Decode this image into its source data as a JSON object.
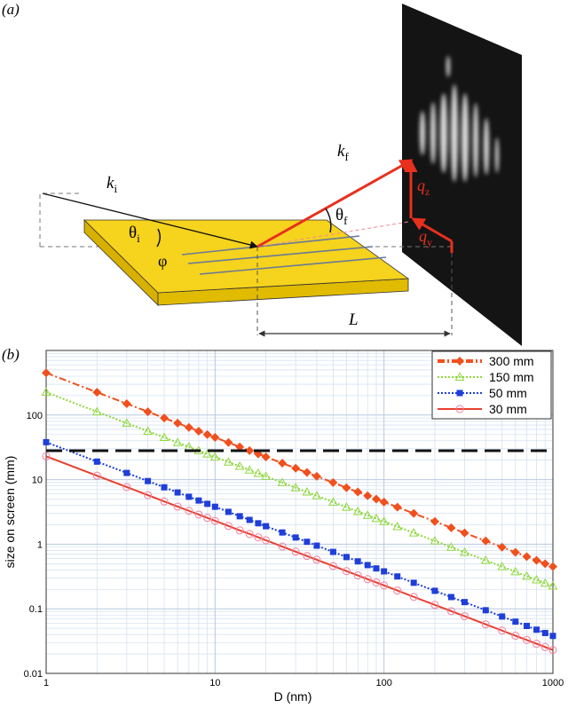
{
  "diagram": {
    "panel_label": "(a)",
    "k_i": {
      "symbol": "k",
      "sub": "i"
    },
    "k_f": {
      "symbol": "k",
      "sub": "f"
    },
    "theta_i": {
      "symbol": "θ",
      "sub": "i"
    },
    "theta_f": {
      "symbol": "θ",
      "sub": "f"
    },
    "phi": "φ",
    "q_z": {
      "symbol": "q",
      "sub": "z"
    },
    "q_y": {
      "symbol": "q",
      "sub": "y"
    },
    "L": "L"
  },
  "chart_data": {
    "type": "line",
    "panel_label": "(b)",
    "x_label": "D (nm)",
    "y_label": "size on screen (mm)",
    "log_x": true,
    "log_y": true,
    "grid": true,
    "legend": "upper right",
    "xlim": [
      1,
      1000
    ],
    "xticks": [
      1,
      10,
      100,
      1000
    ],
    "ylim": [
      0.01,
      1000
    ],
    "yticks": [
      0.01,
      0.1,
      1,
      10,
      100
    ],
    "xminor": [
      2,
      3,
      4,
      5,
      6,
      7,
      8,
      9,
      20,
      30,
      40,
      50,
      60,
      70,
      80,
      90,
      200,
      300,
      400,
      500,
      600,
      700,
      800,
      900
    ],
    "yminor": [
      0.02,
      0.03,
      0.04,
      0.05,
      0.06,
      0.07,
      0.08,
      0.09,
      0.2,
      0.3,
      0.4,
      0.5,
      0.6,
      0.7,
      0.8,
      0.9,
      2,
      3,
      4,
      5,
      6,
      7,
      8,
      9,
      20,
      30,
      40,
      50,
      60,
      70,
      80,
      90,
      200,
      300,
      400,
      500,
      600,
      700,
      800,
      900
    ],
    "hlines": [
      {
        "value": 28,
        "color": "#111111",
        "style": "dashed"
      }
    ],
    "x": [
      1,
      2,
      3,
      4,
      5,
      6,
      7,
      8,
      9,
      10,
      12,
      14,
      16,
      18,
      20,
      25,
      30,
      35,
      40,
      50,
      60,
      70,
      80,
      90,
      100,
      120,
      150,
      200,
      250,
      300,
      400,
      500,
      600,
      700,
      800,
      900,
      1000
    ],
    "series": [
      {
        "name": "300 mm",
        "color": "#f0501e",
        "marker": "diamond",
        "style": "dashdot",
        "values": [
          450,
          225,
          150,
          112.5,
          90,
          75,
          64.3,
          56.3,
          50,
          45,
          37.5,
          32.1,
          28.1,
          25,
          22.5,
          18,
          15,
          12.9,
          11.25,
          9,
          7.5,
          6.43,
          5.63,
          5,
          4.5,
          3.75,
          3,
          2.25,
          1.8,
          1.5,
          1.125,
          0.9,
          0.75,
          0.643,
          0.563,
          0.5,
          0.45
        ]
      },
      {
        "name": "150 mm",
        "color": "#8ed83c",
        "marker": "triangle",
        "style": "dotted",
        "values": [
          225,
          112.5,
          75,
          56.3,
          45,
          37.5,
          32.1,
          28.1,
          25,
          22.5,
          18.75,
          16.1,
          14.1,
          12.5,
          11.25,
          9,
          7.5,
          6.43,
          5.63,
          4.5,
          3.75,
          3.21,
          2.81,
          2.5,
          2.25,
          1.875,
          1.5,
          1.125,
          0.9,
          0.75,
          0.563,
          0.45,
          0.375,
          0.321,
          0.281,
          0.25,
          0.225
        ]
      },
      {
        "name": "50 mm",
        "color": "#1f3fd8",
        "marker": "square",
        "style": "dotted",
        "values": [
          38,
          19,
          12.7,
          9.5,
          7.6,
          6.33,
          5.43,
          4.75,
          4.22,
          3.8,
          3.17,
          2.71,
          2.38,
          2.11,
          1.9,
          1.52,
          1.27,
          1.09,
          0.95,
          0.76,
          0.633,
          0.543,
          0.475,
          0.422,
          0.38,
          0.317,
          0.253,
          0.19,
          0.152,
          0.127,
          0.095,
          0.076,
          0.0633,
          0.0543,
          0.0475,
          0.0422,
          0.038
        ]
      },
      {
        "name": "30 mm",
        "color": "#e8402e",
        "marker": "circle",
        "style": "solid",
        "values": [
          23,
          11.5,
          7.67,
          5.75,
          4.6,
          3.83,
          3.29,
          2.88,
          2.56,
          2.3,
          1.92,
          1.64,
          1.44,
          1.28,
          1.15,
          0.92,
          0.767,
          0.657,
          0.575,
          0.46,
          0.383,
          0.329,
          0.288,
          0.256,
          0.23,
          0.192,
          0.153,
          0.115,
          0.092,
          0.0767,
          0.0575,
          0.046,
          0.0383,
          0.0329,
          0.0288,
          0.0256,
          0.023
        ]
      }
    ]
  }
}
